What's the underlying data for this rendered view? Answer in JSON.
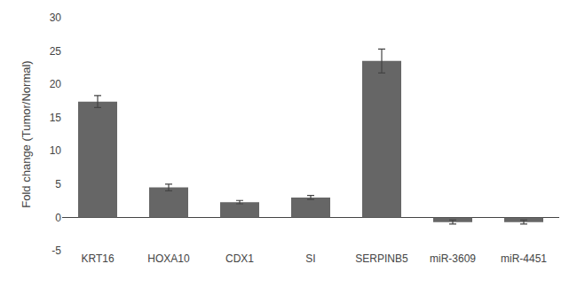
{
  "chart_data": {
    "type": "bar",
    "categories": [
      "KRT16",
      "HOXA10",
      "CDX1",
      "SI",
      "SERPINB5",
      "miR-3609",
      "miR-4451"
    ],
    "values": [
      17.4,
      4.5,
      2.3,
      3.0,
      23.5,
      -0.7,
      -0.7
    ],
    "errors": [
      0.9,
      0.5,
      0.25,
      0.3,
      1.8,
      0.3,
      0.3
    ],
    "color": "#666666",
    "ylabel": "Fold change (Tumor/Normal)",
    "ylim": [
      -5,
      30
    ],
    "yticks": [
      -5,
      0,
      5,
      10,
      15,
      20,
      25,
      30
    ],
    "grid": false
  }
}
